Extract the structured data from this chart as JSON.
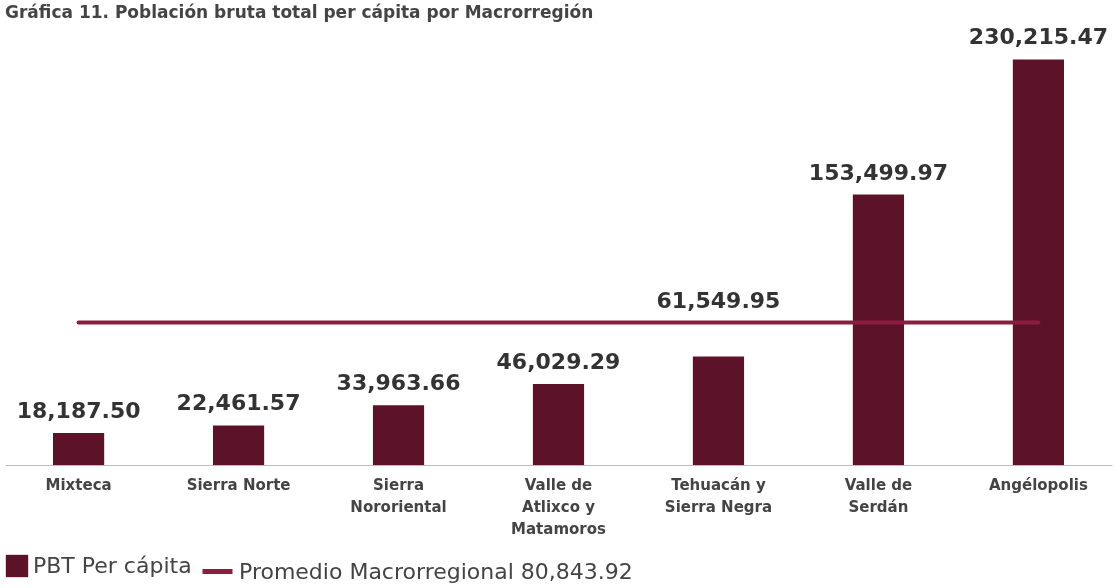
{
  "chart_data": {
    "type": "bar",
    "title": "Gráfica 11. Población bruta total per cápita por Macrorregión",
    "categories": [
      "Mixteca",
      "Sierra Norte",
      "Sierra Nororiental",
      "Valle de Atlixco y Matamoros",
      "Tehuacán y Sierra Negra",
      "Valle de Serdán",
      "Angélopolis"
    ],
    "series": [
      {
        "name": "PBT Per cápita",
        "color": "#5c1228",
        "values": [
          18187.5,
          22461.57,
          33963.66,
          46029.29,
          61549.95,
          153499.97,
          230215.47
        ],
        "value_labels": [
          "18,187.50",
          "22,461.57",
          "33,963.66",
          "46,029.29",
          "61,549.95",
          "153,499.97",
          "230,215.47"
        ]
      }
    ],
    "ref_lines": [
      {
        "axis": "y",
        "value": 80843.92,
        "label": "Promedio Macrorregional 80,843.92",
        "color": "#8b1e3f"
      }
    ],
    "grid": false,
    "legend": "bottom"
  }
}
